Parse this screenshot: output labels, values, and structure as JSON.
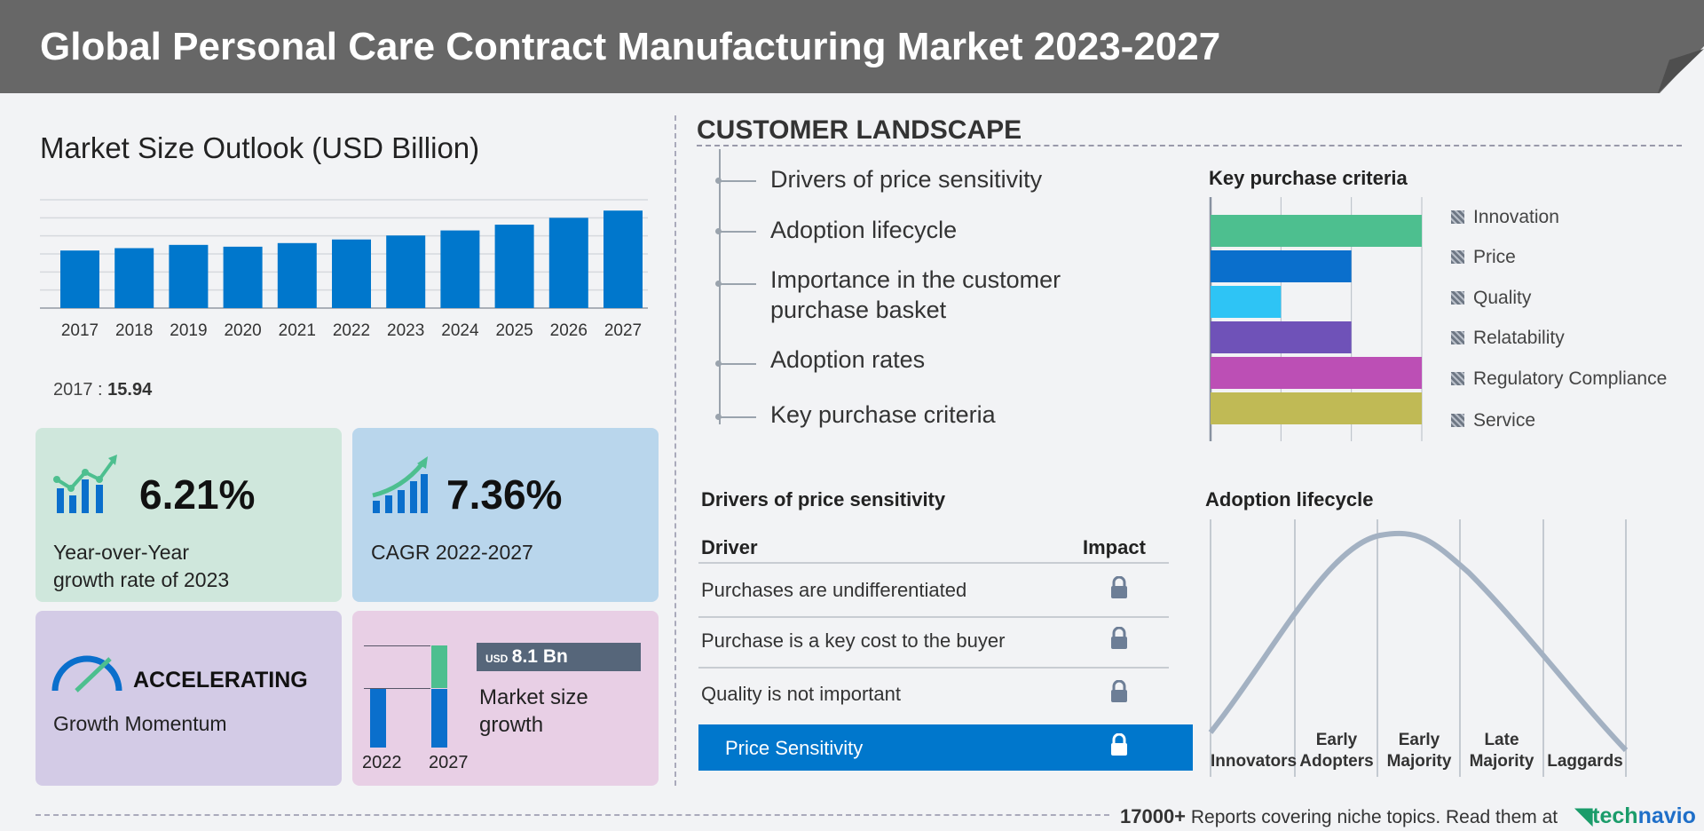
{
  "header": {
    "title": "Global Personal Care Contract Manufacturing Market 2023-2027"
  },
  "market": {
    "title": "Market Size Outlook (USD Billion)",
    "caption_year": "2017 :",
    "caption_value": "15.94"
  },
  "chart_data": {
    "type": "bar",
    "categories": [
      "2017",
      "2018",
      "2019",
      "2020",
      "2021",
      "2022",
      "2023",
      "2024",
      "2025",
      "2026",
      "2027"
    ],
    "values": [
      15.94,
      16.6,
      17.5,
      17.0,
      18.0,
      19.0,
      20.1,
      21.5,
      23.1,
      25.0,
      27.0
    ],
    "ylim": [
      0,
      30
    ],
    "grid": true,
    "color": "#0077cc"
  },
  "cards": {
    "yoy": {
      "value": "6.21%",
      "label1": "Year-over-Year",
      "label2": "growth rate of 2023",
      "bg": "#cfe7dc"
    },
    "cagr": {
      "value": "7.36%",
      "label": "CAGR  2022-2027",
      "bg": "#b9d6ec"
    },
    "momentum": {
      "value": "ACCELERATING",
      "label": "Growth Momentum",
      "bg": "#d3cbe6"
    },
    "growth": {
      "currency": "USD",
      "value": "8.1 Bn",
      "label1": "Market size",
      "label2": "growth",
      "year_start": "2022",
      "year_end": "2027",
      "bg": "#e8cfe5"
    }
  },
  "customer": {
    "title": "CUSTOMER  LANDSCAPE",
    "items": [
      "Drivers of price sensitivity",
      "Adoption lifecycle",
      "Importance in the customer",
      "purchase basket",
      "Adoption rates",
      "Key purchase criteria"
    ]
  },
  "kpc": {
    "title": "Key purchase criteria",
    "items": [
      {
        "label": "Innovation",
        "level": 3,
        "color": "#4dbf8f"
      },
      {
        "label": "Price",
        "level": 2,
        "color": "#0a6fcc"
      },
      {
        "label": "Quality",
        "level": 1,
        "color": "#2ec4f5"
      },
      {
        "label": "Relatability",
        "level": 2,
        "color": "#6f52b8"
      },
      {
        "label": "Regulatory Compliance",
        "level": 3,
        "color": "#bc4fb5"
      },
      {
        "label": "Service",
        "level": 3,
        "color": "#c0ba55"
      }
    ],
    "max": 3
  },
  "drivers": {
    "title": "Drivers of price sensitivity",
    "col_driver": "Driver",
    "col_impact": "Impact",
    "rows": [
      "Purchases are undifferentiated",
      "Purchase is a key cost to the buyer",
      "Quality is not important"
    ],
    "highlight": "Price Sensitivity",
    "highlight_color": "#0077cc"
  },
  "adoption": {
    "title": "Adoption lifecycle",
    "stages": [
      [
        "",
        "Innovators"
      ],
      [
        "Early",
        "Adopters"
      ],
      [
        "Early",
        "Majority"
      ],
      [
        "Late",
        "Majority"
      ],
      [
        "",
        "Laggards"
      ]
    ]
  },
  "footer": {
    "count": "17000+",
    "text": "Reports covering niche topics. Read them at",
    "brand_a": "tech",
    "brand_b": "navio"
  }
}
